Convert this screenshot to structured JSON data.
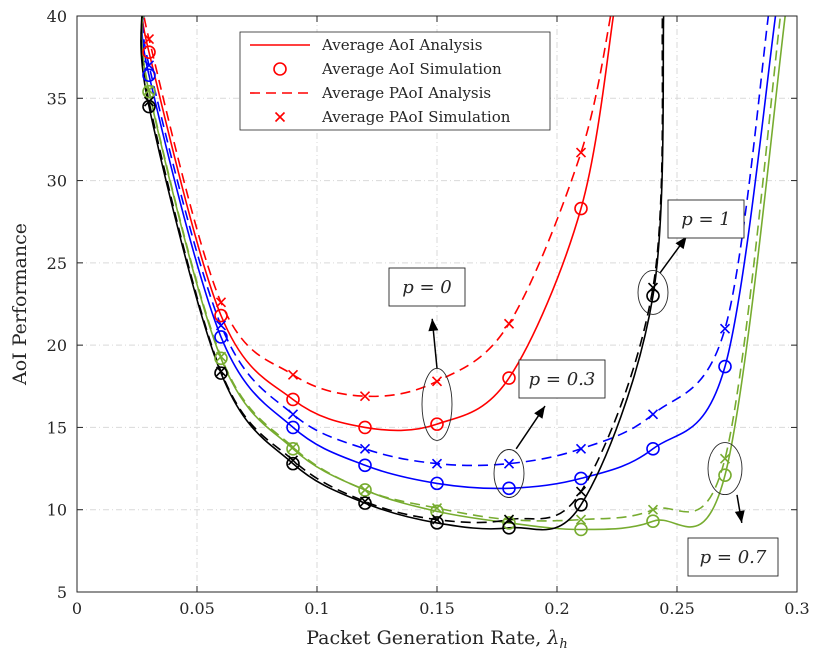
{
  "chart_data": {
    "type": "line",
    "title": "",
    "xlabel": "Packet Generation Rate, λh",
    "ylabel": "AoI Performance",
    "xlim": [
      0,
      0.3
    ],
    "ylim": [
      5,
      40
    ],
    "xticks": [
      0,
      0.05,
      0.1,
      0.15,
      0.2,
      0.25,
      0.3
    ],
    "yticks": [
      5,
      10,
      15,
      20,
      25,
      30,
      35,
      40
    ],
    "xtick_labels": [
      "0",
      "0.05",
      "0.1",
      "0.15",
      "0.2",
      "0.25",
      "0.3"
    ],
    "ytick_labels": [
      "5",
      "10",
      "15",
      "20",
      "25",
      "30",
      "35",
      "40"
    ],
    "grid": true,
    "legend": {
      "position": "top-center",
      "entries": [
        {
          "label": "Average AoI Analysis",
          "style": "solid-line"
        },
        {
          "label": "Average AoI Simulation",
          "style": "circle-marker"
        },
        {
          "label": "Average PAoI Analysis",
          "style": "dashed-line"
        },
        {
          "label": "Average PAoI Simulation",
          "style": "x-marker"
        }
      ]
    },
    "colors": {
      "p=0": "#ff0000",
      "p=0.3": "#0000ff",
      "p=0.7": "#77ac30",
      "p=1": "#000000"
    },
    "sim_x": [
      0.03,
      0.06,
      0.09,
      0.12,
      0.15,
      0.18,
      0.21,
      0.24,
      0.27
    ],
    "series": [
      {
        "p": "0",
        "color": "#ff0000",
        "aoi_sim": [
          37.8,
          21.8,
          16.7,
          15.0,
          15.2,
          18.0,
          28.3
        ],
        "paoi_sim": [
          38.6,
          22.6,
          18.2,
          16.9,
          17.8,
          21.3,
          31.7
        ]
      },
      {
        "p": "0.3",
        "color": "#0000ff",
        "aoi_sim": [
          36.4,
          20.5,
          15.0,
          12.7,
          11.6,
          11.3,
          11.9,
          13.7,
          18.7
        ],
        "paoi_sim": [
          37.0,
          21.2,
          15.8,
          13.7,
          12.8,
          12.8,
          13.7,
          15.8,
          21.0
        ]
      },
      {
        "p": "0.7",
        "color": "#77ac30",
        "aoi_sim": [
          35.4,
          19.2,
          13.7,
          11.2,
          9.9,
          9.2,
          8.8,
          9.3,
          12.1
        ],
        "paoi_sim": [
          35.5,
          19.3,
          13.8,
          11.2,
          10.1,
          9.4,
          9.4,
          10.0,
          13.1
        ]
      },
      {
        "p": "1",
        "color": "#000000",
        "aoi_sim": [
          34.5,
          18.3,
          12.8,
          10.4,
          9.2,
          8.9,
          10.3,
          23.0
        ],
        "paoi_sim": [
          34.8,
          18.4,
          13.0,
          10.5,
          9.4,
          9.4,
          11.1,
          23.5
        ]
      }
    ],
    "annotations": [
      {
        "text": "p = 0",
        "points_to": "p=0 curves near λh=0.15"
      },
      {
        "text": "p = 0.3",
        "points_to": "p=0.3 curves near λh=0.18"
      },
      {
        "text": "p = 0.7",
        "points_to": "p=0.7 curves near λh=0.27"
      },
      {
        "text": "p = 1",
        "points_to": "p=1 curves near λh=0.24"
      }
    ]
  }
}
